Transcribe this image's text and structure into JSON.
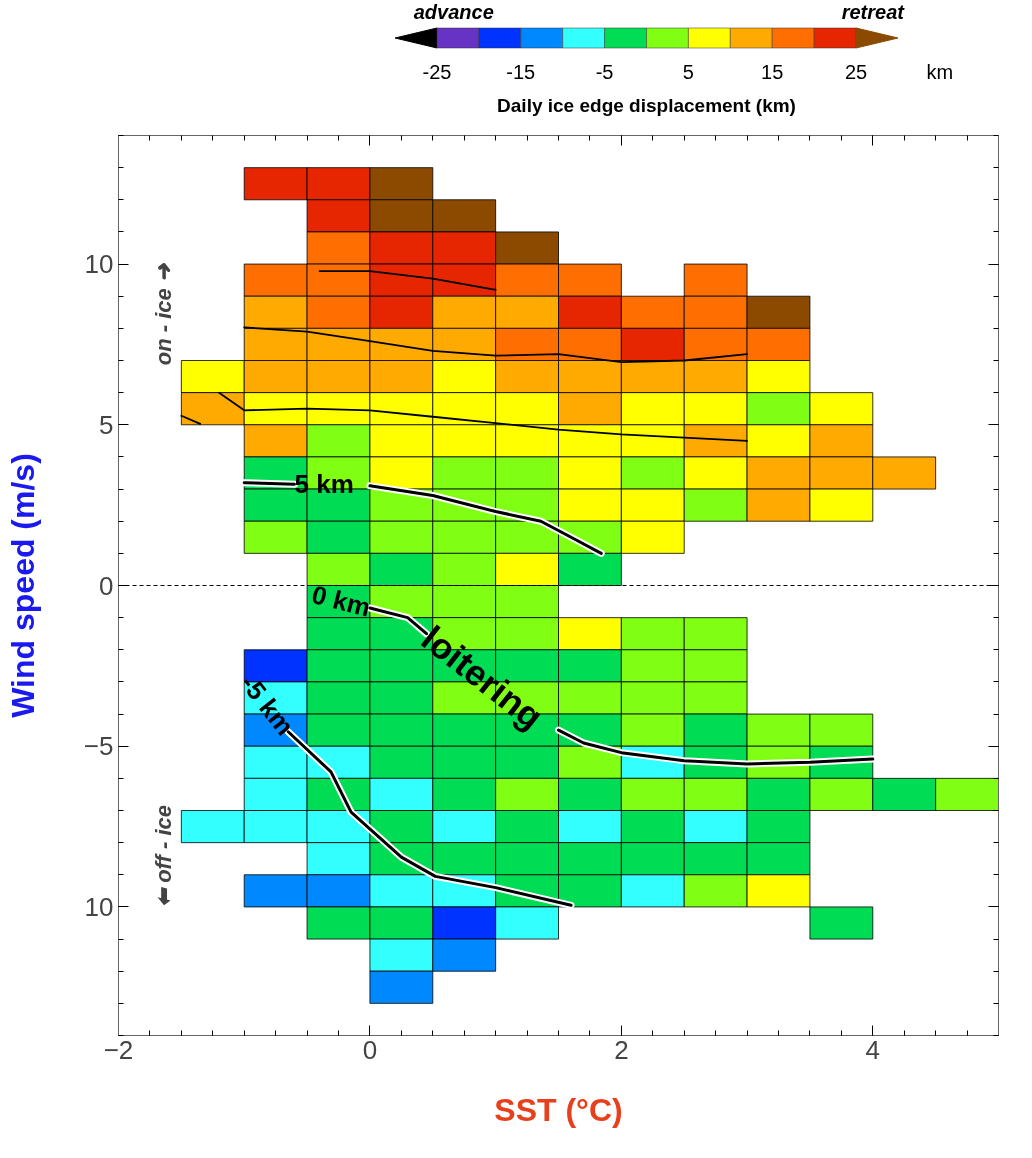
{
  "chart_data": {
    "type": "heatmap",
    "xlabel": "SST (°C)",
    "ylabel": "Wind speed (m/s)",
    "clabel": "Daily ice edge displacement (km)",
    "x": [
      -1.25,
      -0.75,
      -0.25,
      0.25,
      0.75,
      1.25,
      1.75,
      2.25,
      2.75,
      3.25,
      3.75,
      4.25,
      4.75
    ],
    "y": [
      12.5,
      11.5,
      10.5,
      9.5,
      8.5,
      7.5,
      6.5,
      5.5,
      4.5,
      3.5,
      2.5,
      1.5,
      0.5,
      -0.5,
      -1.5,
      -2.5,
      -3.5,
      -4.5,
      -5.5,
      -6.5,
      -7.5,
      -8.5,
      -9.5,
      -10.5,
      -11.5,
      -12.5
    ],
    "cells": [
      [
        null,
        22.5,
        22.5,
        27.5,
        null,
        null,
        null,
        null,
        null,
        null,
        null,
        null,
        null
      ],
      [
        null,
        null,
        22.5,
        27.5,
        27.5,
        null,
        null,
        null,
        null,
        null,
        null,
        null,
        null
      ],
      [
        null,
        null,
        17.5,
        22.5,
        22.5,
        27.5,
        null,
        null,
        null,
        null,
        null,
        null,
        null
      ],
      [
        null,
        17.5,
        17.5,
        22.5,
        22.5,
        17.5,
        17.5,
        null,
        17.5,
        null,
        null,
        null,
        null
      ],
      [
        null,
        12.5,
        17.5,
        22.5,
        12.5,
        12.5,
        22.5,
        17.5,
        17.5,
        27.5,
        null,
        null,
        null
      ],
      [
        null,
        12.5,
        12.5,
        12.5,
        12.5,
        17.5,
        17.5,
        22.5,
        17.5,
        17.5,
        null,
        null,
        null
      ],
      [
        7.5,
        12.5,
        12.5,
        12.5,
        7.5,
        12.5,
        12.5,
        12.5,
        12.5,
        7.5,
        null,
        null,
        null
      ],
      [
        12.5,
        7.5,
        7.5,
        7.5,
        7.5,
        7.5,
        12.5,
        7.5,
        7.5,
        2.5,
        7.5,
        null,
        null
      ],
      [
        null,
        12.5,
        2.5,
        7.5,
        7.5,
        7.5,
        7.5,
        7.5,
        12.5,
        7.5,
        12.5,
        null,
        null
      ],
      [
        null,
        -2.5,
        2.5,
        7.5,
        2.5,
        2.5,
        7.5,
        2.5,
        7.5,
        12.5,
        12.5,
        12.5,
        null
      ],
      [
        null,
        -2.5,
        -2.5,
        2.5,
        2.5,
        2.5,
        7.5,
        7.5,
        2.5,
        12.5,
        7.5,
        null,
        null
      ],
      [
        null,
        2.5,
        -2.5,
        2.5,
        2.5,
        2.5,
        2.5,
        7.5,
        null,
        null,
        null,
        null,
        null
      ],
      [
        null,
        null,
        2.5,
        -2.5,
        2.5,
        7.5,
        -2.5,
        null,
        null,
        null,
        null,
        null,
        null
      ],
      [
        null,
        null,
        -2.5,
        2.5,
        2.5,
        2.5,
        null,
        null,
        null,
        null,
        null,
        null,
        null
      ],
      [
        null,
        null,
        -2.5,
        -2.5,
        2.5,
        2.5,
        7.5,
        2.5,
        2.5,
        null,
        null,
        null,
        null
      ],
      [
        null,
        -17.5,
        -2.5,
        -2.5,
        -2.5,
        -2.5,
        -2.5,
        2.5,
        2.5,
        null,
        null,
        null,
        null
      ],
      [
        null,
        -7.5,
        -2.5,
        -2.5,
        2.5,
        2.5,
        2.5,
        2.5,
        2.5,
        null,
        null,
        null,
        null
      ],
      [
        null,
        -12.5,
        -2.5,
        -2.5,
        -2.5,
        -2.5,
        -2.5,
        2.5,
        -2.5,
        2.5,
        2.5,
        null,
        null
      ],
      [
        null,
        -7.5,
        -7.5,
        -2.5,
        -2.5,
        -2.5,
        2.5,
        -7.5,
        -2.5,
        2.5,
        -2.5,
        null,
        null
      ],
      [
        null,
        -7.5,
        -2.5,
        -7.5,
        -2.5,
        2.5,
        -2.5,
        2.5,
        2.5,
        -2.5,
        2.5,
        -2.5,
        2.5
      ],
      [
        -7.5,
        -7.5,
        -7.5,
        -2.5,
        -7.5,
        -2.5,
        -7.5,
        -2.5,
        -7.5,
        -2.5,
        null,
        null,
        null
      ],
      [
        null,
        null,
        -7.5,
        -2.5,
        -2.5,
        -2.5,
        -2.5,
        -2.5,
        -2.5,
        -2.5,
        null,
        null,
        null
      ],
      [
        null,
        -12.5,
        -12.5,
        -7.5,
        -7.5,
        -2.5,
        -2.5,
        -7.5,
        2.5,
        7.5,
        null,
        null,
        null
      ],
      [
        null,
        null,
        -2.5,
        -2.5,
        -17.5,
        -7.5,
        null,
        null,
        null,
        null,
        -2.5,
        null,
        null
      ],
      [
        null,
        null,
        null,
        -7.5,
        -12.5,
        null,
        null,
        null,
        null,
        null,
        null,
        null,
        null
      ],
      [
        null,
        null,
        null,
        -12.5,
        null,
        null,
        null,
        null,
        null,
        null,
        null,
        null,
        null
      ]
    ],
    "colors": [
      "#000000",
      "#6633c4",
      "#0033ff",
      "#0088ff",
      "#33ffff",
      "#00dd55",
      "#80ff14",
      "#ffff00",
      "#ffaa00",
      "#ff6e00",
      "#e62600",
      "#8b4a00"
    ],
    "clim": [
      -30,
      30
    ],
    "cticks": [
      -25,
      -15,
      -5,
      5,
      15,
      25
    ],
    "xlim": [
      -2,
      5
    ],
    "xticks": [
      -2,
      0,
      2,
      4
    ],
    "ylim": [
      -14,
      14
    ],
    "yticks": [
      10,
      5,
      0,
      -5,
      {
        "value": -10,
        "label": "10"
      }
    ],
    "grid": false,
    "ref_lines": [
      {
        "axis": "y",
        "value": 0,
        "label": null,
        "color": "#000000",
        "line_style": "dashed"
      }
    ],
    "series": [
      {
        "type": "line",
        "color": "#000000",
        "x": [
          -1.0,
          -0.6,
          -0.3,
          0.0,
          0.5,
          1.0,
          1.36,
          1.6,
          1.84
        ],
        "values": [
          3.2,
          3.15,
          null,
          3.1,
          2.8,
          2.3,
          2.0,
          1.5,
          1.0
        ]
      },
      {
        "type": "line",
        "color": "#000000",
        "x": [
          0.0,
          0.3,
          0.45,
          0.8,
          1.5,
          1.7,
          2.0,
          2.5,
          3.0,
          3.5,
          4.0
        ],
        "values": [
          -0.7,
          -1.0,
          -1.5,
          null,
          -4.5,
          -4.9,
          -5.2,
          -5.45,
          -5.55,
          -5.5,
          -5.4
        ]
      },
      {
        "type": "line",
        "color": "#000000",
        "x": [
          -0.65,
          -0.31,
          -0.15,
          0.25,
          0.52,
          1.0,
          1.6
        ],
        "values": [
          -4.55,
          -5.8,
          -7.05,
          -8.45,
          -9.05,
          -9.4,
          -9.95
        ]
      },
      {
        "type": "line",
        "color": "#000000",
        "x": [
          -0.4,
          0.0,
          0.5,
          1.0
        ],
        "values": [
          9.78,
          9.78,
          9.55,
          9.2
        ]
      },
      {
        "type": "line",
        "color": "#000000",
        "x": [
          -1.0,
          -0.5,
          0.0,
          0.5,
          1.0,
          1.5,
          2.0,
          2.5,
          3.0
        ],
        "values": [
          8.03,
          7.9,
          7.6,
          7.3,
          7.15,
          7.2,
          6.95,
          7.0,
          7.2
        ]
      },
      {
        "type": "line",
        "color": "#000000",
        "x": [
          -1.2,
          -1.0,
          -0.5,
          0.0,
          0.5,
          1.0,
          1.5,
          2.0,
          2.5,
          3.0
        ],
        "values": [
          6.0,
          5.45,
          5.5,
          5.45,
          5.25,
          5.05,
          4.85,
          4.7,
          4.6,
          4.5
        ]
      },
      {
        "type": "line",
        "color": "#000000",
        "x": [
          -1.5,
          -1.35
        ],
        "values": [
          5.28,
          5.03
        ]
      }
    ],
    "annotations": [
      "advance",
      "retreat",
      "km",
      "on - ice ➜",
      "⬅ off - ice",
      {
        "text": "5 km",
        "x": -0.6,
        "y": 3.15
      },
      {
        "text": "0 km",
        "x": 0.0,
        "y": -0.7
      },
      {
        "text": "loitering",
        "x": 0.45,
        "y": -1.5
      },
      {
        "text": "-5 km",
        "x": -0.65,
        "y": -4.55
      }
    ]
  }
}
